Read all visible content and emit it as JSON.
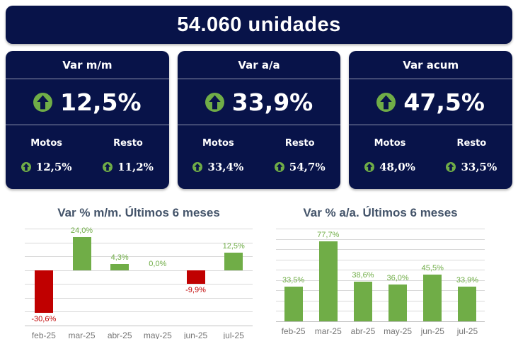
{
  "header": {
    "title": "54.060 unidades"
  },
  "cards": [
    {
      "title": "Var m/m",
      "value": "12,5%",
      "trend_icon": "up-arrow-icon",
      "breakdown": [
        {
          "label": "Motos",
          "value": "12,5%"
        },
        {
          "label": "Resto",
          "value": "11,2%"
        }
      ]
    },
    {
      "title": "Var a/a",
      "value": "33,9%",
      "trend_icon": "up-arrow-icon",
      "breakdown": [
        {
          "label": "Motos",
          "value": "33,4%"
        },
        {
          "label": "Resto",
          "value": "54,7%"
        }
      ]
    },
    {
      "title": "Var acum",
      "value": "47,5%",
      "trend_icon": "up-arrow-icon",
      "breakdown": [
        {
          "label": "Motos",
          "value": "48,0%"
        },
        {
          "label": "Resto",
          "value": "33,5%"
        }
      ]
    }
  ],
  "colors": {
    "navy": "#081349",
    "green": "#70AD47",
    "red": "#C00000",
    "chart_title": "#44546A",
    "axis_label": "#757575",
    "gridline": "#D9D9D9"
  },
  "chart_data": [
    {
      "type": "bar",
      "title": "Var % m/m. Últimos 6 meses",
      "categories": [
        "feb-25",
        "mar-25",
        "abr-25",
        "may-25",
        "jun-25",
        "jul-25"
      ],
      "values": [
        -30.6,
        24.0,
        4.3,
        0.0,
        -9.9,
        12.5
      ],
      "labels": [
        "-30,6%",
        "24,0%",
        "4,3%",
        "0,0%",
        "-9,9%",
        "12,5%"
      ],
      "ylim": [
        -40,
        30
      ],
      "gridline_step": 10,
      "grid": true,
      "legend": false,
      "positive_color": "#70AD47",
      "negative_color": "#C00000"
    },
    {
      "type": "bar",
      "title": "Var % a/a. Últimos 6 meses",
      "categories": [
        "feb-25",
        "mar-25",
        "abr-25",
        "may-25",
        "jun-25",
        "jul-25"
      ],
      "values": [
        33.5,
        77.7,
        38.6,
        36.0,
        45.5,
        33.9
      ],
      "labels": [
        "33,5%",
        "77,7%",
        "38,6%",
        "36,0%",
        "45,5%",
        "33,9%"
      ],
      "ylim": [
        0,
        90
      ],
      "gridline_step": 10,
      "grid": true,
      "legend": false,
      "positive_color": "#70AD47",
      "negative_color": "#C00000"
    }
  ]
}
